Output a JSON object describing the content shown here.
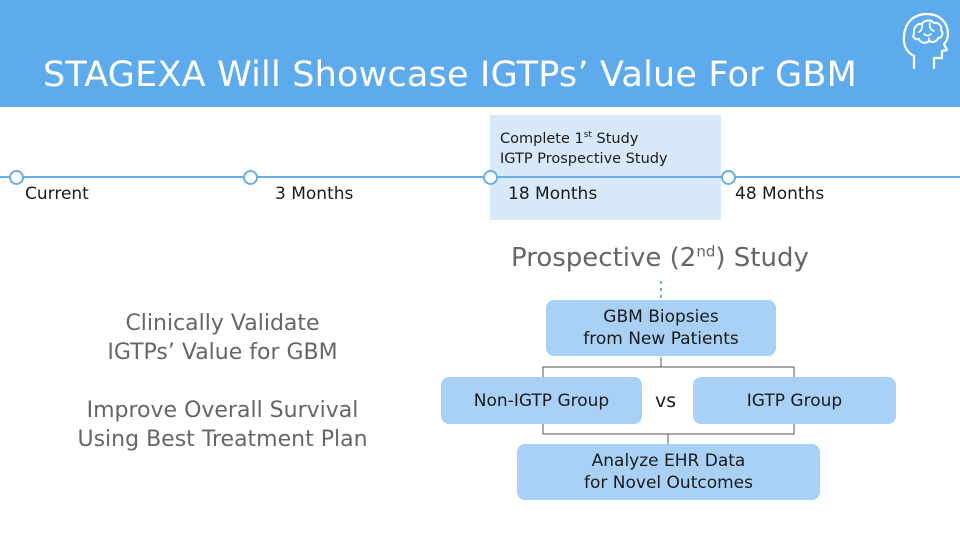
{
  "header": {
    "title": "STAGEXA Will Showcase IGTPs’ Value For GBM",
    "logo_icon": "brain-head-icon",
    "background": "#5dabec"
  },
  "timeline": {
    "milestones": [
      {
        "label": "Current"
      },
      {
        "label": "3 Months"
      },
      {
        "label": "18 Months"
      },
      {
        "label": "48 Months"
      }
    ],
    "highlight": {
      "line1_prefix": "Complete 1",
      "line1_sup": "st",
      "line1_suffix": " Study",
      "line2": "IGTP Prospective Study"
    }
  },
  "study": {
    "title_prefix": "Prospective (2",
    "title_sup": "nd",
    "title_suffix": ") Study",
    "box_top": {
      "line1": "GBM Biopsies",
      "line2": "from New Patients"
    },
    "box_left": "Non-IGTP Group",
    "vs": "vs",
    "box_right": "IGTP Group",
    "box_bottom": {
      "line1": "Analyze EHR Data",
      "line2": "for Novel Outcomes"
    }
  },
  "goals": {
    "goal1": {
      "line1": "Clinically Validate",
      "line2": "IGTPs’ Value for GBM"
    },
    "goal2": {
      "line1": "Improve Overall Survival",
      "line2": "Using Best Treatment Plan"
    }
  }
}
